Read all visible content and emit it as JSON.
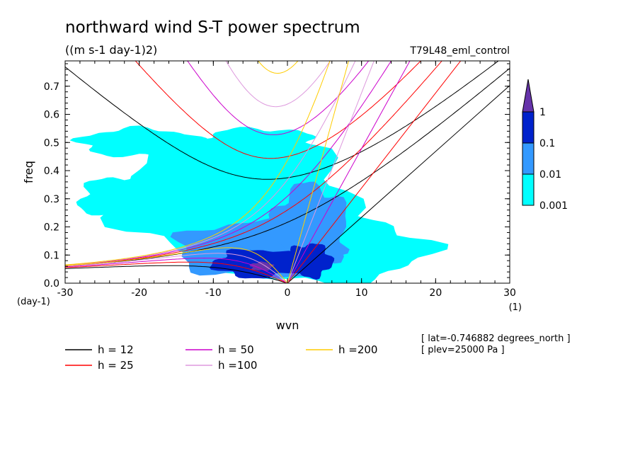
{
  "chart_data": {
    "type": "heatmap",
    "title": "northward wind S-T power spectrum",
    "subtitle": "((m s-1 day-1)2)",
    "experiment": "T79L48_eml_control",
    "xlabel": "wvn",
    "ylabel": "freq",
    "x_unit": "(1)",
    "y_unit": "(day-1)",
    "xlim": [
      -30,
      30
    ],
    "ylim": [
      0,
      0.79
    ],
    "x_ticks": [
      "-30",
      "-20",
      "-10",
      "0",
      "10",
      "20",
      "30"
    ],
    "x_tick_values": [
      -30,
      -20,
      -10,
      0,
      10,
      20,
      30
    ],
    "y_ticks": [
      "0.0",
      "0.1",
      "0.2",
      "0.3",
      "0.4",
      "0.5",
      "0.6",
      "0.7"
    ],
    "y_tick_values": [
      0,
      0.1,
      0.2,
      0.3,
      0.4,
      0.5,
      0.6,
      0.7
    ],
    "colorbar": {
      "levels": [
        "0.001",
        "0.01",
        "0.1",
        "1"
      ],
      "level_values": [
        0.001,
        0.01,
        0.1,
        1
      ],
      "colors": [
        "#00ffff",
        "#3399ff",
        "#0022cc",
        "#6633aa"
      ]
    },
    "contour_regions": [
      {
        "level": 0.001,
        "center": [
          -7,
          0.3
        ],
        "rx": 16,
        "ry": 0.22
      },
      {
        "level": 0.001,
        "center": [
          4,
          0.12
        ],
        "rx": 15,
        "ry": 0.12
      },
      {
        "level": 0.001,
        "center": [
          -20,
          0.5
        ],
        "rx": 8,
        "ry": 0.05
      },
      {
        "level": 0.001,
        "center": [
          -4,
          0.5
        ],
        "rx": 8,
        "ry": 0.05
      },
      {
        "level": 0.001,
        "center": [
          -22,
          0.3
        ],
        "rx": 6,
        "ry": 0.08
      },
      {
        "level": 0.01,
        "center": [
          -4,
          0.12
        ],
        "rx": 11,
        "ry": 0.1
      },
      {
        "level": 0.01,
        "center": [
          3,
          0.2
        ],
        "rx": 5,
        "ry": 0.15
      },
      {
        "level": 0.1,
        "center": [
          -4,
          0.07
        ],
        "rx": 6,
        "ry": 0.05
      },
      {
        "level": 0.1,
        "center": [
          3,
          0.08
        ],
        "rx": 3,
        "ry": 0.06
      },
      {
        "level": 1,
        "center": [
          -3.5,
          0.06
        ],
        "rx": 1.5,
        "ry": 0.015
      }
    ],
    "dispersion_curves": [
      {
        "name": "h = 12",
        "equivalent_depth": 12,
        "color": "#000000"
      },
      {
        "name": "h = 25",
        "equivalent_depth": 25,
        "color": "#ff0000"
      },
      {
        "name": "h = 50",
        "equivalent_depth": 50,
        "color": "#cc00cc"
      },
      {
        "name": "h =100",
        "equivalent_depth": 100,
        "color": "#dd99dd"
      },
      {
        "name": "h =200",
        "equivalent_depth": 200,
        "color": "#ffcc00"
      }
    ],
    "annotations": [
      "[ lat=-0.746882 degrees_north ]",
      "[ plev=25000 Pa ]"
    ],
    "legend_position": "bottom-left"
  }
}
